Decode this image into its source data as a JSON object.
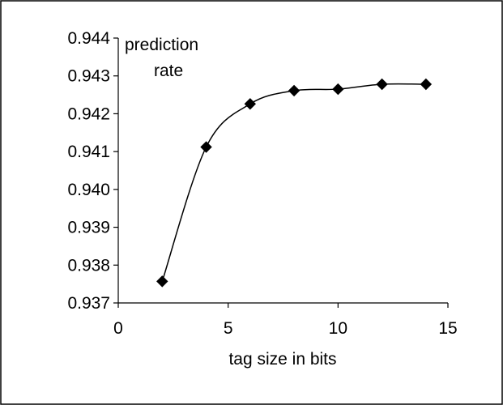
{
  "chart_data": {
    "type": "line",
    "x": [
      2,
      4,
      6,
      8,
      10,
      12,
      14
    ],
    "series": [
      {
        "values": [
          0.93757,
          0.94112,
          0.94226,
          0.94261,
          0.94265,
          0.94278,
          0.94278
        ]
      }
    ],
    "annotation_lines": [
      "prediction",
      "rate"
    ],
    "xlabel": "tag size in bits",
    "ylabel": "",
    "xlim": [
      0,
      15
    ],
    "ylim": [
      0.937,
      0.944
    ],
    "x_ticks": [
      0,
      5,
      10,
      15
    ],
    "x_tick_labels": [
      "0",
      "5",
      "10",
      "15"
    ],
    "y_ticks": [
      0.937,
      0.938,
      0.939,
      0.94,
      0.941,
      0.942,
      0.943,
      0.944
    ],
    "y_tick_labels": [
      "0.937",
      "0.938",
      "0.939",
      "0.940",
      "0.941",
      "0.942",
      "0.943",
      "0.944"
    ],
    "grid": false,
    "legend": "none",
    "smoothed_line": true,
    "marker": "diamond",
    "colors": {
      "line": "#000000",
      "marker": "#000000",
      "border": "#000000",
      "background": "#ffffff"
    }
  }
}
